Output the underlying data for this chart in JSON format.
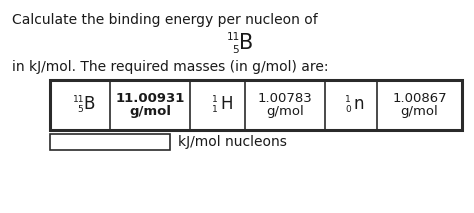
{
  "title_line1": "Calculate the binding energy per nucleon of",
  "element_symbol": "B",
  "element_mass": "11",
  "element_atomic": "5",
  "subtitle": "in kJ/mol. The required masses (in g/mol) are:",
  "table_col1_symbol": "B",
  "table_col1_mass": "11",
  "table_col1_atomic": "5",
  "table_col2_line1": "11.00931",
  "table_col2_line2": "g/mol",
  "table_col3_symbol": "H",
  "table_col3_mass": "1",
  "table_col3_atomic": "1",
  "table_col4_line1": "1.00783",
  "table_col4_line2": "g/mol",
  "table_col5_symbol": "n",
  "table_col5_mass": "1",
  "table_col5_atomic": "0",
  "table_col6_line1": "1.00867",
  "table_col6_line2": "g/mol",
  "answer_label": "kJ/mol nucleons",
  "bg_color": "#ffffff",
  "text_color": "#1a1a1a",
  "border_color": "#2a2a2a"
}
